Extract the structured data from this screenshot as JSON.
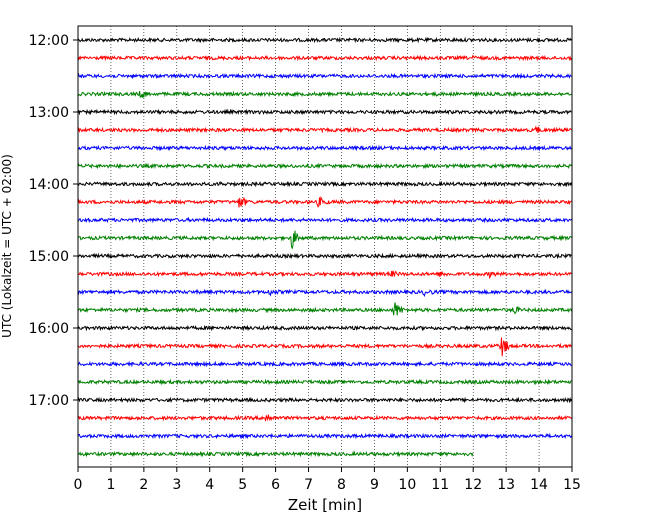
{
  "chart_data": {
    "type": "line",
    "subtype": "helicorder",
    "xlabel": "Zeit  [min]",
    "ylabel": "UTC (Lokalzeit = UTC + 02:00)",
    "xlim": [
      0,
      15
    ],
    "x_ticks": [
      0,
      1,
      2,
      3,
      4,
      5,
      6,
      7,
      8,
      9,
      10,
      11,
      12,
      13,
      14,
      15
    ],
    "y_tick_labels": [
      "12:00",
      "13:00",
      "14:00",
      "15:00",
      "16:00",
      "17:00"
    ],
    "vertical_grid": "dotted",
    "trace_colors": [
      "#000000",
      "#ff0000",
      "#0000ff",
      "#008000"
    ],
    "traces": [
      {
        "label": "12:00",
        "color": "#000000",
        "end_min": 15,
        "events": []
      },
      {
        "label": "12:15",
        "color": "#ff0000",
        "end_min": 15,
        "events": [
          {
            "t": 12.0,
            "amp": 3,
            "dur": 0.8
          },
          {
            "t": 12.9,
            "amp": 2,
            "dur": 0.5
          }
        ]
      },
      {
        "label": "12:30",
        "color": "#0000ff",
        "end_min": 15,
        "events": []
      },
      {
        "label": "12:45",
        "color": "#008000",
        "end_min": 15,
        "events": [
          {
            "t": 1.9,
            "amp": 6,
            "dur": 0.6
          },
          {
            "t": 10.9,
            "amp": 3,
            "dur": 0.2
          }
        ]
      },
      {
        "label": "13:00",
        "color": "#000000",
        "end_min": 15,
        "events": [
          {
            "t": 5.5,
            "amp": 3,
            "dur": 0.2
          }
        ]
      },
      {
        "label": "13:15",
        "color": "#ff0000",
        "end_min": 15,
        "events": [
          {
            "t": 13.9,
            "amp": 6,
            "dur": 0.4
          },
          {
            "t": 11.5,
            "amp": 1,
            "dur": 1.0
          }
        ]
      },
      {
        "label": "13:30",
        "color": "#0000ff",
        "end_min": 15,
        "events": []
      },
      {
        "label": "13:45",
        "color": "#008000",
        "end_min": 15,
        "events": []
      },
      {
        "label": "14:00",
        "color": "#000000",
        "end_min": 15,
        "events": [
          {
            "t": 4.3,
            "amp": 4,
            "dur": 0.3
          },
          {
            "t": 11.7,
            "amp": 2,
            "dur": 0.2
          }
        ]
      },
      {
        "label": "14:15",
        "color": "#ff0000",
        "end_min": 15,
        "events": [
          {
            "t": 4.9,
            "amp": 8,
            "dur": 0.6
          },
          {
            "t": 7.3,
            "amp": 6,
            "dur": 0.8
          }
        ]
      },
      {
        "label": "14:30",
        "color": "#0000ff",
        "end_min": 15,
        "events": []
      },
      {
        "label": "14:45",
        "color": "#008000",
        "end_min": 15,
        "events": [
          {
            "t": 6.5,
            "amp": 14,
            "dur": 0.4
          }
        ]
      },
      {
        "label": "15:00",
        "color": "#000000",
        "end_min": 15,
        "events": []
      },
      {
        "label": "15:15",
        "color": "#ff0000",
        "end_min": 15,
        "events": [
          {
            "t": 9.5,
            "amp": 4,
            "dur": 1.0
          },
          {
            "t": 11.0,
            "amp": 4,
            "dur": 0.8
          },
          {
            "t": 12.5,
            "amp": 4,
            "dur": 0.8
          }
        ]
      },
      {
        "label": "15:30",
        "color": "#0000ff",
        "end_min": 15,
        "events": [
          {
            "t": 5.8,
            "amp": 4,
            "dur": 1.2
          },
          {
            "t": 10.5,
            "amp": 4,
            "dur": 1.2
          }
        ]
      },
      {
        "label": "15:45",
        "color": "#008000",
        "end_min": 15,
        "events": [
          {
            "t": 9.6,
            "amp": 10,
            "dur": 0.6
          },
          {
            "t": 13.2,
            "amp": 5,
            "dur": 0.8
          }
        ]
      },
      {
        "label": "16:00",
        "color": "#000000",
        "end_min": 15,
        "events": []
      },
      {
        "label": "16:15",
        "color": "#ff0000",
        "end_min": 15,
        "events": [
          {
            "t": 12.85,
            "amp": 13,
            "dur": 0.5
          }
        ]
      },
      {
        "label": "16:30",
        "color": "#0000ff",
        "end_min": 15,
        "events": []
      },
      {
        "label": "16:45",
        "color": "#008000",
        "end_min": 15,
        "events": []
      },
      {
        "label": "17:00",
        "color": "#000000",
        "end_min": 15,
        "events": []
      },
      {
        "label": "17:15",
        "color": "#ff0000",
        "end_min": 15,
        "events": [
          {
            "t": 5.7,
            "amp": 7,
            "dur": 0.6
          },
          {
            "t": 7.1,
            "amp": 2,
            "dur": 0.6
          }
        ]
      },
      {
        "label": "17:30",
        "color": "#0000ff",
        "end_min": 15,
        "events": [
          {
            "t": 13.0,
            "amp": 2,
            "dur": 0.3
          }
        ]
      },
      {
        "label": "17:45",
        "color": "#008000",
        "end_min": 12,
        "events": []
      }
    ]
  }
}
